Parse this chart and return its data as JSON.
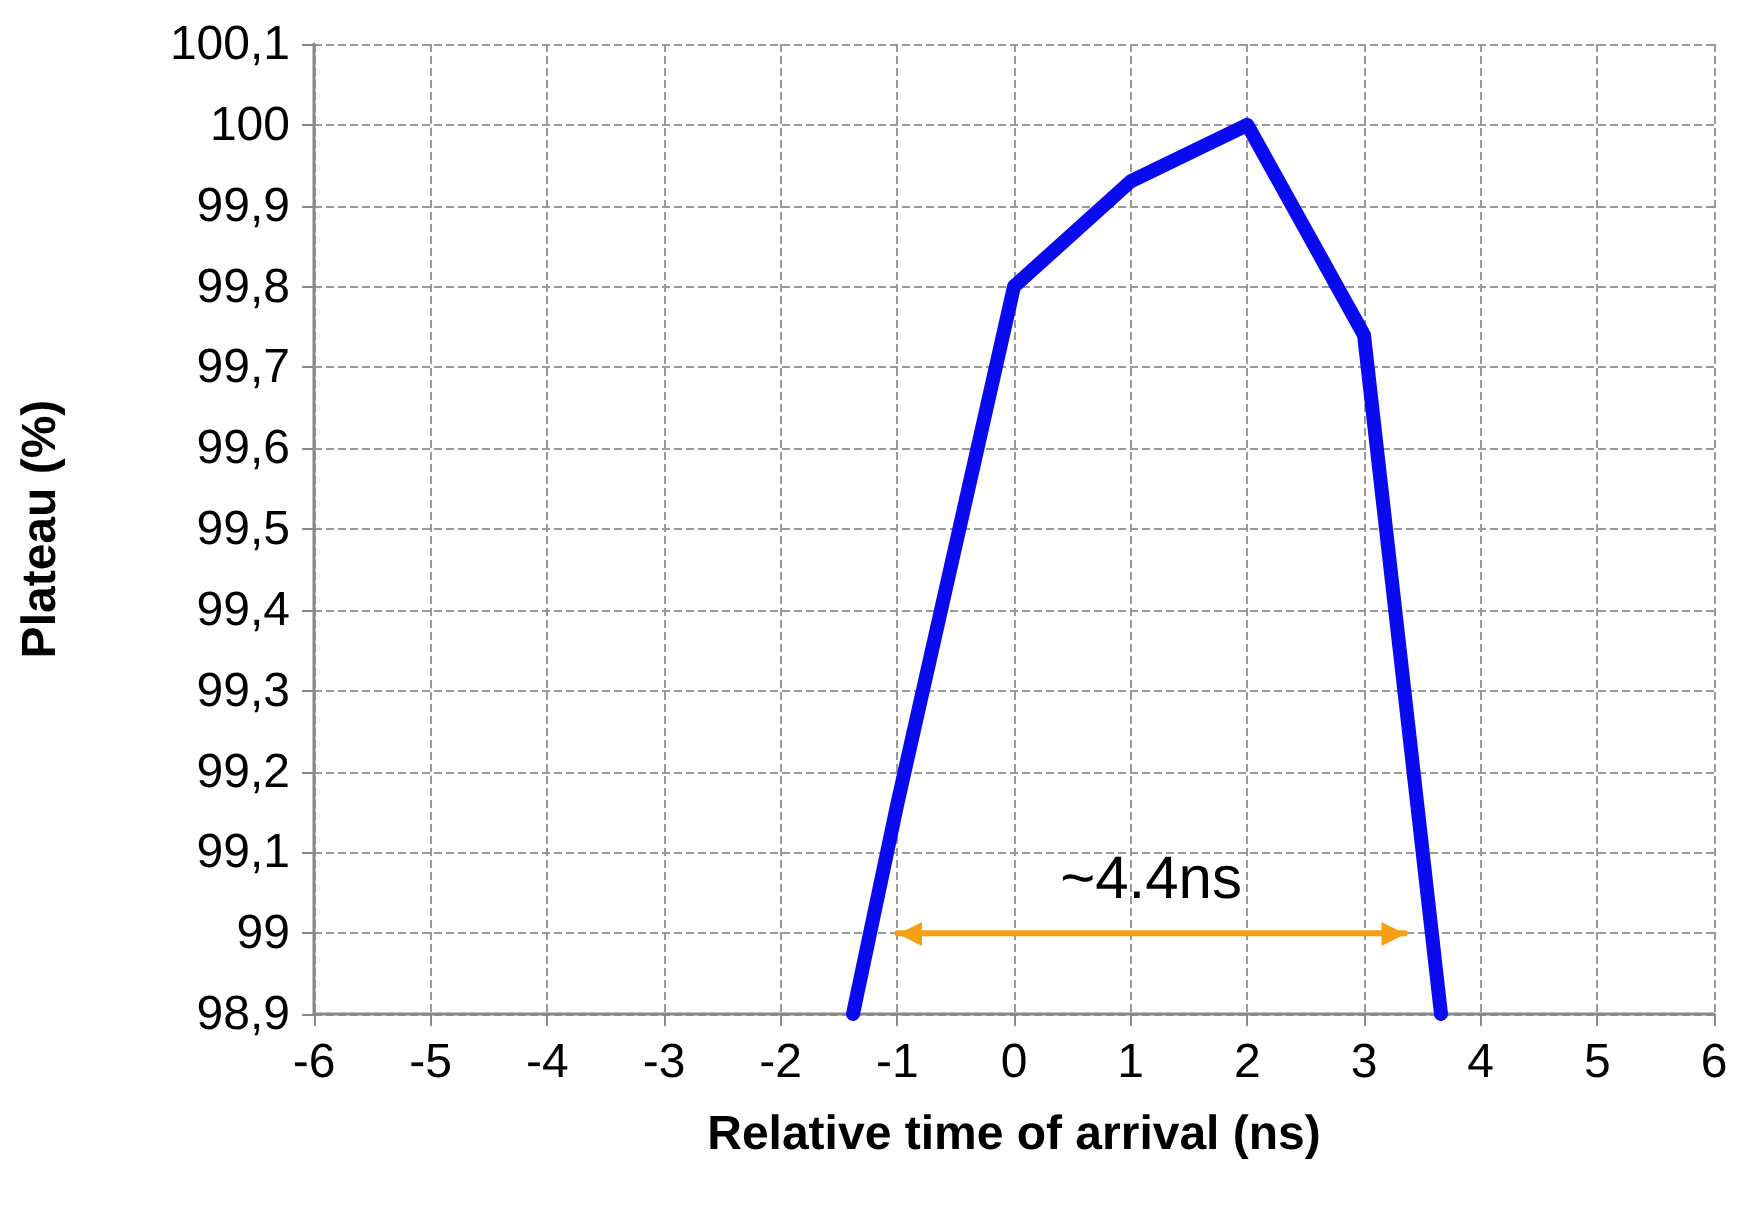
{
  "chart_data": {
    "type": "line",
    "xlabel": "Relative time of arrival (ns)",
    "ylabel": "Plateau (%)",
    "xlim": [
      -6,
      6
    ],
    "xticks": [
      -6,
      -5,
      -4,
      -3,
      -2,
      -1,
      0,
      1,
      2,
      3,
      4,
      5,
      6
    ],
    "ylim": [
      98.9,
      100.1
    ],
    "yticks": [
      {
        "value": 98.9,
        "label": "98,9"
      },
      {
        "value": 99,
        "label": "99"
      },
      {
        "value": 99.1,
        "label": "99,1"
      },
      {
        "value": 99.2,
        "label": "99,2"
      },
      {
        "value": 99.3,
        "label": "99,3"
      },
      {
        "value": 99.4,
        "label": "99,4"
      },
      {
        "value": 99.5,
        "label": "99,5"
      },
      {
        "value": 99.6,
        "label": "99,6"
      },
      {
        "value": 99.7,
        "label": "99,7"
      },
      {
        "value": 99.8,
        "label": "99,8"
      },
      {
        "value": 99.9,
        "label": "99,9"
      },
      {
        "value": 100,
        "label": "100"
      },
      {
        "value": 100.1,
        "label": "100,1"
      }
    ],
    "grid": true,
    "marker": "none",
    "line_style": "solid",
    "series": [
      {
        "color": "#0a0af0",
        "x": [
          -1.38,
          -1,
          0,
          1,
          2,
          3,
          3.66
        ],
        "values": [
          98.9,
          99.16,
          99.8,
          99.93,
          100,
          99.74,
          98.9
        ]
      },
      {
        "color": "#f5a011",
        "x": [
          -1,
          3.35
        ],
        "values": [
          99,
          99
        ],
        "line_style": "solid"
      }
    ],
    "annotations": [
      "~4.4ns"
    ]
  }
}
